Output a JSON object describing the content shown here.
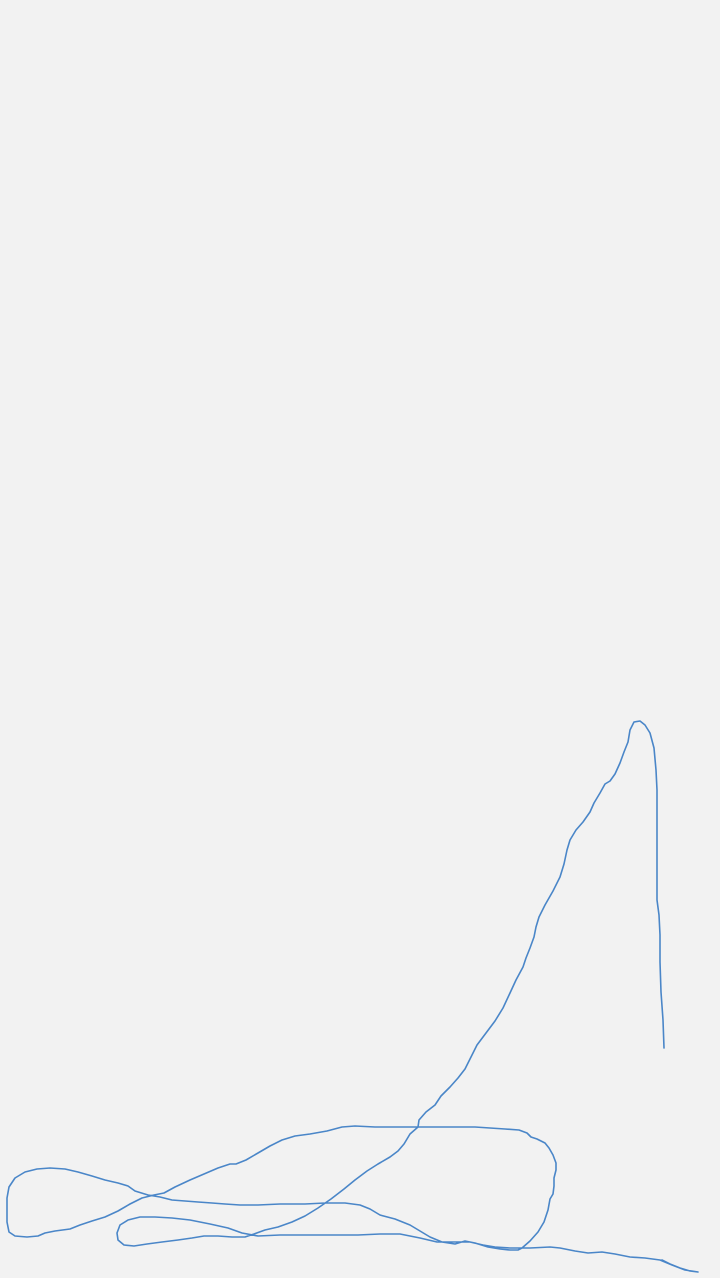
{
  "canvas": {
    "background": "#f2f2f2",
    "stroke_color": "#4a86c8",
    "stroke_count": 1
  }
}
